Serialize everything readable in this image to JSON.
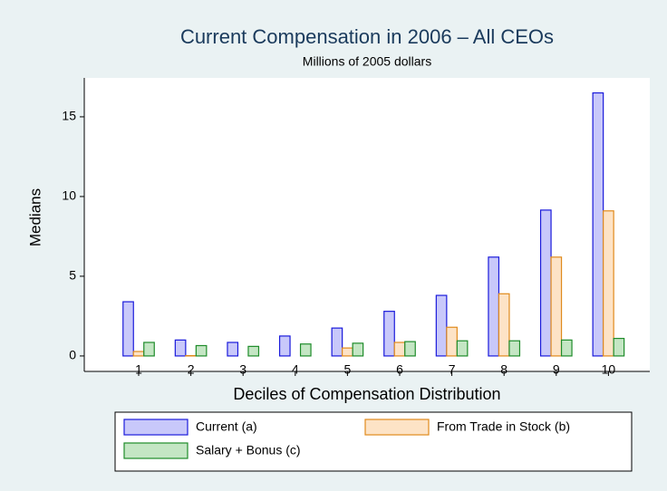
{
  "chart_data": {
    "type": "bar",
    "title": "Current Compensation in 2006 – All CEOs",
    "subtitle": "Millions of 2005 dollars",
    "x_label": "Deciles of Compensation Distribution",
    "y_label": "Medians",
    "categories": [
      "1",
      "2",
      "3",
      "4",
      "5",
      "6",
      "7",
      "8",
      "9",
      "10"
    ],
    "series": [
      {
        "name": "Current (a)",
        "color": "#c8c8fa",
        "edge": "#1a1adb",
        "values": [
          3.4,
          1.0,
          0.85,
          1.25,
          1.75,
          2.8,
          3.8,
          6.2,
          9.15,
          16.5
        ]
      },
      {
        "name": "From Trade in Stock (b)",
        "color": "#fde3c6",
        "edge": "#e08a1c",
        "values": [
          0.28,
          0.02,
          0,
          0,
          0.5,
          0.85,
          1.8,
          3.9,
          6.2,
          9.1
        ]
      },
      {
        "name": "Salary + Bonus (c)",
        "color": "#c4e6c4",
        "edge": "#1e8c2a",
        "values": [
          0.85,
          0.65,
          0.6,
          0.75,
          0.8,
          0.9,
          0.95,
          0.95,
          1.0,
          1.1
        ]
      }
    ],
    "ylim": [
      -0.97,
      17.44
    ],
    "yticks": [
      0,
      5,
      10,
      15
    ],
    "grid": false,
    "legend": "bottom"
  }
}
